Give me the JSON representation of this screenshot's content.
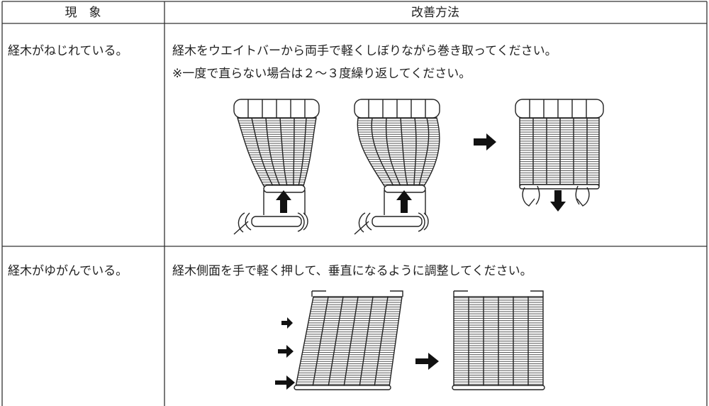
{
  "header": [
    "現　象",
    "改善方法"
  ],
  "rows": [
    {
      "symptom": "経木がねじれている。",
      "remedy": [
        "経木をウエイトバーから両手で軽くしぼりながら巻き取ってください。",
        "※一度で直らない場合は２～３度繰り返してください。"
      ]
    },
    {
      "symptom": "経木がゆがんでいる。",
      "remedy": [
        "経木側面を手で軽く押して、垂直になるように調整してください。"
      ]
    }
  ]
}
